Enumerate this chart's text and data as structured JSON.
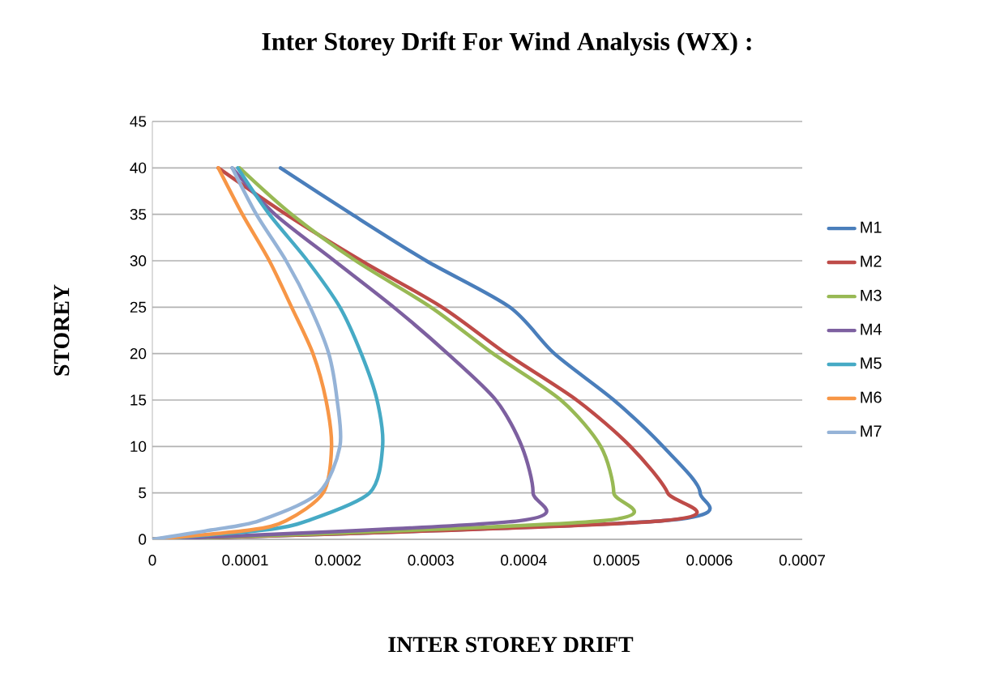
{
  "chart_data": {
    "type": "line",
    "title": "Inter Storey Drift For Wind Analysis (WX) :",
    "xlabel": "INTER STOREY DRIFT",
    "ylabel": "STOREY",
    "xlim": [
      0,
      0.0007
    ],
    "xticks": [
      0,
      0.0001,
      0.0002,
      0.0003,
      0.0004,
      0.0005,
      0.0006,
      0.0007
    ],
    "ylim": [
      0,
      45
    ],
    "yticks": [
      0,
      5,
      10,
      15,
      20,
      25,
      30,
      35,
      40,
      45
    ],
    "grid": "y",
    "legend": "right",
    "marker": "none",
    "line_style": "solid",
    "series": [
      {
        "name": "M1",
        "color": "#4a7ebb",
        "x": [
          0,
          0.00055,
          0.00059,
          0.00055,
          0.000497,
          0.000433,
          0.000385,
          0.000295,
          0.000215,
          0.000138
        ],
        "values": [
          0,
          2,
          5,
          10,
          15,
          20,
          25,
          30,
          35,
          40
        ]
      },
      {
        "name": "M2",
        "color": "#be4b48",
        "x": [
          0,
          0.00055,
          0.000555,
          0.000515,
          0.000457,
          0.000381,
          0.000312,
          0.000225,
          0.000144,
          7.1e-05
        ],
        "values": [
          0,
          2,
          5,
          10,
          15,
          20,
          25,
          30,
          35,
          40
        ]
      },
      {
        "name": "M3",
        "color": "#98b954",
        "x": [
          0,
          0.000485,
          0.000497,
          0.000483,
          0.00044,
          0.000367,
          0.0003,
          0.000219,
          0.00015,
          9.4e-05
        ],
        "values": [
          0,
          2,
          5,
          10,
          15,
          20,
          25,
          30,
          35,
          40
        ]
      },
      {
        "name": "M4",
        "color": "#7d60a0",
        "x": [
          0,
          0.000395,
          0.00041,
          0.000398,
          0.00037,
          0.000318,
          0.00026,
          0.000196,
          0.000132,
          8.6e-05
        ],
        "values": [
          0,
          2,
          5,
          10,
          15,
          20,
          25,
          30,
          35,
          40
        ]
      },
      {
        "name": "M5",
        "color": "#46aac5",
        "x": [
          0,
          0.00012,
          0.000167,
          0.000234,
          0.000248,
          0.000242,
          0.000225,
          0.000202,
          0.000167,
          0.000126,
          9.2e-05
        ],
        "values": [
          0,
          1,
          2,
          5,
          10,
          15,
          20,
          25,
          30,
          35,
          40
        ]
      },
      {
        "name": "M6",
        "color": "#f79646",
        "x": [
          0,
          0.000105,
          0.000144,
          0.000184,
          0.000193,
          0.000187,
          0.000173,
          0.00015,
          0.000126,
          9.7e-05,
          7.1e-05
        ],
        "values": [
          0,
          1,
          2,
          5,
          10,
          15,
          20,
          25,
          30,
          35,
          40
        ]
      },
      {
        "name": "M7",
        "color": "#95b3d7",
        "x": [
          0,
          6.3e-05,
          0.000115,
          0.000179,
          0.000202,
          0.000199,
          0.00019,
          0.00017,
          0.000144,
          0.000112,
          8.6e-05
        ],
        "values": [
          0,
          1,
          2,
          5,
          10,
          15,
          20,
          25,
          30,
          35,
          40
        ]
      }
    ]
  }
}
